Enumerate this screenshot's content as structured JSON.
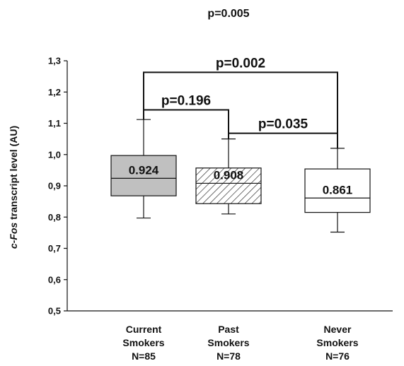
{
  "chart_data": {
    "type": "box",
    "title": "p=0.005",
    "ylabel_prefix": "c-Fos",
    "ylabel_suffix": " transcript level (AU)",
    "ylim": [
      0.5,
      1.3
    ],
    "yticks": [
      0.5,
      0.6,
      0.7,
      0.8,
      0.9,
      1.0,
      1.1,
      1.2,
      1.3
    ],
    "ytick_labels": [
      "0,5",
      "0,6",
      "0,7",
      "0,8",
      "0,9",
      "1,0",
      "1,1",
      "1,2",
      "1,3"
    ],
    "categories": [
      {
        "line1": "Current",
        "line2": "Smokers",
        "line3": "N=85"
      },
      {
        "line1": "Past",
        "line2": "Smokers",
        "line3": "N=78"
      },
      {
        "line1": "Never",
        "line2": "Smokers",
        "line3": "N=76"
      }
    ],
    "boxes": [
      {
        "whisker_low": 0.797,
        "q1": 0.868,
        "median": 0.924,
        "q3": 0.997,
        "whisker_high": 1.112,
        "median_label": "0.924",
        "fill": "#c0c0c0",
        "pattern": "none"
      },
      {
        "whisker_low": 0.81,
        "q1": 0.843,
        "median": 0.908,
        "q3": 0.957,
        "whisker_high": 1.05,
        "median_label": "0.908",
        "fill": "#ffffff",
        "pattern": "hatch"
      },
      {
        "whisker_low": 0.752,
        "q1": 0.815,
        "median": 0.861,
        "q3": 0.954,
        "whisker_high": 1.02,
        "median_label": "0.861",
        "fill": "#ffffff",
        "pattern": "none"
      }
    ],
    "comparisons": [
      {
        "from": 0,
        "to": 1,
        "label": "p=0.196",
        "level": 1.143
      },
      {
        "from": 1,
        "to": 2,
        "label": "p=0.035",
        "level": 1.068
      },
      {
        "from": 0,
        "to": 2,
        "label": "p=0.002",
        "level": 1.263
      }
    ],
    "grid": false,
    "legend": "none"
  }
}
